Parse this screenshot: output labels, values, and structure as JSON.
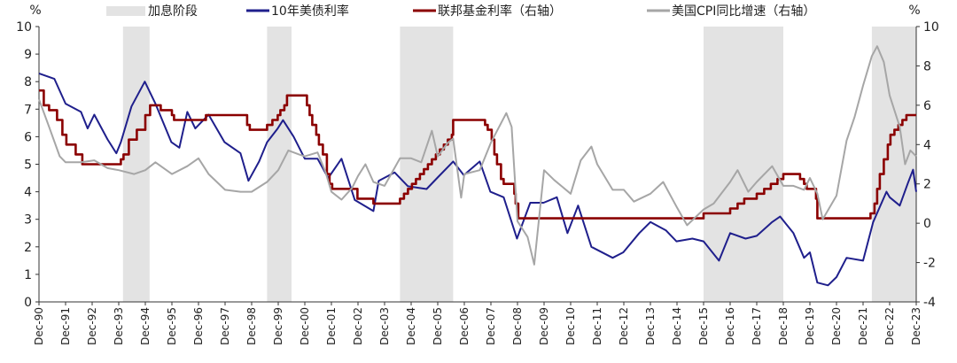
{
  "chart_data": {
    "type": "line",
    "left_axis_unit": "%",
    "right_axis_unit": "%",
    "left_ylim": [
      0,
      10
    ],
    "right_ylim": [
      -4,
      10
    ],
    "left_ticks": [
      "0",
      "1",
      "2",
      "3",
      "4",
      "5",
      "6",
      "7",
      "8",
      "9",
      "10"
    ],
    "right_ticks": [
      "-4",
      "-2",
      "0",
      "2",
      "4",
      "6",
      "8",
      "10"
    ],
    "x_labels": [
      "Dec-90",
      "Dec-91",
      "Dec-92",
      "Dec-93",
      "Dec-94",
      "Dec-95",
      "Dec-96",
      "Dec-97",
      "Dec-98",
      "Dec-99",
      "Dec-00",
      "Dec-01",
      "Dec-02",
      "Dec-03",
      "Dec-04",
      "Dec-05",
      "Dec-06",
      "Dec-07",
      "Dec-08",
      "Dec-09",
      "Dec-10",
      "Dec-11",
      "Dec-12",
      "Dec-13",
      "Dec-14",
      "Dec-15",
      "Dec-16",
      "Dec-17",
      "Dec-18",
      "Dec-19",
      "Dec-20",
      "Dec-21",
      "Dec-22",
      "Dec-23"
    ],
    "x_range": [
      1990.92,
      2023.92
    ],
    "legend": [
      {
        "name": "加息阶段",
        "kind": "band",
        "color": "#e3e3e3"
      },
      {
        "name": "10年美债利率",
        "kind": "line",
        "color": "#1f1f8c"
      },
      {
        "name": "联邦基金利率（右轴）",
        "kind": "line",
        "color": "#8b0000"
      },
      {
        "name": "美国CPI同比增速（右轴）",
        "kind": "line",
        "color": "#a6a6a6"
      }
    ],
    "hike_periods": [
      [
        1994.08,
        1995.08
      ],
      [
        1999.5,
        2000.42
      ],
      [
        2004.5,
        2006.5
      ],
      [
        2015.92,
        2018.92
      ],
      [
        2022.25,
        2023.92
      ]
    ],
    "series": [
      {
        "name": "10年美债利率",
        "axis": "left",
        "color": "#1f1f8c",
        "points": [
          [
            1990.92,
            8.3
          ],
          [
            1991.5,
            8.1
          ],
          [
            1991.92,
            7.2
          ],
          [
            1992.5,
            6.9
          ],
          [
            1992.75,
            6.3
          ],
          [
            1993.0,
            6.8
          ],
          [
            1993.5,
            5.9
          ],
          [
            1993.83,
            5.4
          ],
          [
            1994.0,
            5.8
          ],
          [
            1994.4,
            7.1
          ],
          [
            1994.9,
            8.0
          ],
          [
            1995.3,
            7.2
          ],
          [
            1995.9,
            5.8
          ],
          [
            1996.2,
            5.6
          ],
          [
            1996.5,
            6.9
          ],
          [
            1996.8,
            6.3
          ],
          [
            1997.3,
            6.8
          ],
          [
            1997.9,
            5.8
          ],
          [
            1998.5,
            5.4
          ],
          [
            1998.8,
            4.4
          ],
          [
            1999.2,
            5.1
          ],
          [
            1999.5,
            5.8
          ],
          [
            1999.9,
            6.3
          ],
          [
            2000.1,
            6.6
          ],
          [
            2000.5,
            6.0
          ],
          [
            2000.92,
            5.2
          ],
          [
            2001.4,
            5.2
          ],
          [
            2001.8,
            4.5
          ],
          [
            2002.3,
            5.2
          ],
          [
            2002.8,
            3.7
          ],
          [
            2003.5,
            3.3
          ],
          [
            2003.7,
            4.4
          ],
          [
            2004.3,
            4.7
          ],
          [
            2004.8,
            4.2
          ],
          [
            2005.5,
            4.1
          ],
          [
            2005.9,
            4.5
          ],
          [
            2006.5,
            5.1
          ],
          [
            2006.9,
            4.6
          ],
          [
            2007.5,
            5.1
          ],
          [
            2007.9,
            4.0
          ],
          [
            2008.4,
            3.8
          ],
          [
            2008.9,
            2.3
          ],
          [
            2009.4,
            3.6
          ],
          [
            2009.9,
            3.6
          ],
          [
            2010.4,
            3.8
          ],
          [
            2010.8,
            2.5
          ],
          [
            2011.2,
            3.5
          ],
          [
            2011.7,
            2.0
          ],
          [
            2012.5,
            1.6
          ],
          [
            2012.9,
            1.8
          ],
          [
            2013.5,
            2.5
          ],
          [
            2013.92,
            2.9
          ],
          [
            2014.5,
            2.6
          ],
          [
            2014.9,
            2.2
          ],
          [
            2015.5,
            2.3
          ],
          [
            2015.92,
            2.2
          ],
          [
            2016.5,
            1.5
          ],
          [
            2016.92,
            2.5
          ],
          [
            2017.5,
            2.3
          ],
          [
            2017.92,
            2.4
          ],
          [
            2018.5,
            2.9
          ],
          [
            2018.8,
            3.1
          ],
          [
            2019.3,
            2.5
          ],
          [
            2019.7,
            1.6
          ],
          [
            2019.92,
            1.8
          ],
          [
            2020.2,
            0.7
          ],
          [
            2020.6,
            0.6
          ],
          [
            2020.92,
            0.9
          ],
          [
            2021.3,
            1.6
          ],
          [
            2021.92,
            1.5
          ],
          [
            2022.3,
            2.9
          ],
          [
            2022.8,
            4.0
          ],
          [
            2022.92,
            3.8
          ],
          [
            2023.3,
            3.5
          ],
          [
            2023.6,
            4.3
          ],
          [
            2023.8,
            4.8
          ],
          [
            2023.92,
            4.0
          ]
        ]
      },
      {
        "name": "联邦基金利率（右轴）",
        "axis": "right",
        "color": "#8b0000",
        "step": true,
        "points": [
          [
            1990.92,
            6.75
          ],
          [
            1991.1,
            6.0
          ],
          [
            1991.3,
            5.75
          ],
          [
            1991.6,
            5.25
          ],
          [
            1991.8,
            4.5
          ],
          [
            1991.95,
            4.0
          ],
          [
            1992.3,
            3.5
          ],
          [
            1992.55,
            3.0
          ],
          [
            1994.0,
            3.25
          ],
          [
            1994.1,
            3.5
          ],
          [
            1994.3,
            4.25
          ],
          [
            1994.6,
            4.75
          ],
          [
            1994.92,
            5.5
          ],
          [
            1995.1,
            6.0
          ],
          [
            1995.5,
            5.75
          ],
          [
            1995.92,
            5.5
          ],
          [
            1996.0,
            5.25
          ],
          [
            1997.2,
            5.5
          ],
          [
            1998.75,
            5.0
          ],
          [
            1998.85,
            4.75
          ],
          [
            1999.5,
            5.0
          ],
          [
            1999.7,
            5.25
          ],
          [
            1999.9,
            5.5
          ],
          [
            2000.0,
            5.75
          ],
          [
            2000.15,
            6.0
          ],
          [
            2000.25,
            6.5
          ],
          [
            2001.0,
            6.0
          ],
          [
            2001.1,
            5.5
          ],
          [
            2001.2,
            5.0
          ],
          [
            2001.35,
            4.5
          ],
          [
            2001.45,
            4.0
          ],
          [
            2001.6,
            3.5
          ],
          [
            2001.75,
            2.5
          ],
          [
            2001.85,
            2.0
          ],
          [
            2001.95,
            1.75
          ],
          [
            2002.9,
            1.25
          ],
          [
            2003.5,
            1.0
          ],
          [
            2004.5,
            1.25
          ],
          [
            2004.65,
            1.5
          ],
          [
            2004.8,
            1.75
          ],
          [
            2004.95,
            2.0
          ],
          [
            2005.1,
            2.25
          ],
          [
            2005.25,
            2.5
          ],
          [
            2005.4,
            2.75
          ],
          [
            2005.55,
            3.0
          ],
          [
            2005.7,
            3.25
          ],
          [
            2005.85,
            3.5
          ],
          [
            2006.0,
            3.75
          ],
          [
            2006.15,
            4.0
          ],
          [
            2006.3,
            4.25
          ],
          [
            2006.45,
            4.5
          ],
          [
            2006.5,
            5.25
          ],
          [
            2007.7,
            5.0
          ],
          [
            2007.8,
            4.75
          ],
          [
            2007.95,
            4.25
          ],
          [
            2008.05,
            3.5
          ],
          [
            2008.15,
            3.0
          ],
          [
            2008.3,
            2.25
          ],
          [
            2008.4,
            2.0
          ],
          [
            2008.8,
            1.5
          ],
          [
            2008.85,
            1.0
          ],
          [
            2008.95,
            0.25
          ],
          [
            2015.92,
            0.5
          ],
          [
            2016.92,
            0.75
          ],
          [
            2017.2,
            1.0
          ],
          [
            2017.45,
            1.25
          ],
          [
            2017.92,
            1.5
          ],
          [
            2018.2,
            1.75
          ],
          [
            2018.45,
            2.0
          ],
          [
            2018.7,
            2.25
          ],
          [
            2018.92,
            2.5
          ],
          [
            2019.55,
            2.25
          ],
          [
            2019.7,
            2.0
          ],
          [
            2019.8,
            1.75
          ],
          [
            2020.15,
            1.25
          ],
          [
            2020.2,
            0.25
          ],
          [
            2022.2,
            0.5
          ],
          [
            2022.35,
            1.0
          ],
          [
            2022.45,
            1.75
          ],
          [
            2022.55,
            2.5
          ],
          [
            2022.7,
            3.25
          ],
          [
            2022.85,
            4.0
          ],
          [
            2022.95,
            4.5
          ],
          [
            2023.1,
            4.75
          ],
          [
            2023.25,
            5.0
          ],
          [
            2023.4,
            5.25
          ],
          [
            2023.55,
            5.5
          ],
          [
            2023.92,
            5.5
          ]
        ]
      },
      {
        "name": "美国CPI同比增速（右轴）",
        "axis": "right",
        "color": "#a6a6a6",
        "points": [
          [
            1990.92,
            6.3
          ],
          [
            1991.3,
            4.9
          ],
          [
            1991.7,
            3.4
          ],
          [
            1991.92,
            3.1
          ],
          [
            1992.5,
            3.1
          ],
          [
            1993.0,
            3.2
          ],
          [
            1993.5,
            2.8
          ],
          [
            1993.92,
            2.7
          ],
          [
            1994.5,
            2.5
          ],
          [
            1994.92,
            2.7
          ],
          [
            1995.3,
            3.1
          ],
          [
            1995.92,
            2.5
          ],
          [
            1996.5,
            2.9
          ],
          [
            1996.92,
            3.3
          ],
          [
            1997.3,
            2.5
          ],
          [
            1997.92,
            1.7
          ],
          [
            1998.5,
            1.6
          ],
          [
            1998.92,
            1.6
          ],
          [
            1999.5,
            2.1
          ],
          [
            1999.92,
            2.7
          ],
          [
            2000.3,
            3.7
          ],
          [
            2000.7,
            3.5
          ],
          [
            2000.92,
            3.4
          ],
          [
            2001.4,
            3.6
          ],
          [
            2001.7,
            2.6
          ],
          [
            2001.92,
            1.6
          ],
          [
            2002.3,
            1.2
          ],
          [
            2002.7,
            1.8
          ],
          [
            2002.92,
            2.4
          ],
          [
            2003.2,
            3.0
          ],
          [
            2003.5,
            2.1
          ],
          [
            2003.92,
            1.9
          ],
          [
            2004.5,
            3.3
          ],
          [
            2004.92,
            3.3
          ],
          [
            2005.3,
            3.1
          ],
          [
            2005.7,
            4.7
          ],
          [
            2005.92,
            3.4
          ],
          [
            2006.3,
            4.1
          ],
          [
            2006.5,
            4.3
          ],
          [
            2006.8,
            1.3
          ],
          [
            2006.92,
            2.5
          ],
          [
            2007.5,
            2.7
          ],
          [
            2007.92,
            4.1
          ],
          [
            2008.5,
            5.6
          ],
          [
            2008.7,
            4.9
          ],
          [
            2008.92,
            0.1
          ],
          [
            2009.3,
            -0.7
          ],
          [
            2009.55,
            -2.1
          ],
          [
            2009.92,
            2.7
          ],
          [
            2010.3,
            2.2
          ],
          [
            2010.92,
            1.5
          ],
          [
            2011.3,
            3.2
          ],
          [
            2011.7,
            3.9
          ],
          [
            2011.92,
            3.0
          ],
          [
            2012.5,
            1.7
          ],
          [
            2012.92,
            1.7
          ],
          [
            2013.3,
            1.1
          ],
          [
            2013.92,
            1.5
          ],
          [
            2014.4,
            2.1
          ],
          [
            2014.92,
            0.8
          ],
          [
            2015.3,
            -0.1
          ],
          [
            2015.92,
            0.7
          ],
          [
            2016.3,
            1.0
          ],
          [
            2016.92,
            2.1
          ],
          [
            2017.2,
            2.7
          ],
          [
            2017.6,
            1.6
          ],
          [
            2017.92,
            2.1
          ],
          [
            2018.5,
            2.9
          ],
          [
            2018.92,
            1.9
          ],
          [
            2019.3,
            1.9
          ],
          [
            2019.7,
            1.7
          ],
          [
            2019.92,
            2.3
          ],
          [
            2020.2,
            1.5
          ],
          [
            2020.4,
            0.2
          ],
          [
            2020.92,
            1.4
          ],
          [
            2021.3,
            4.2
          ],
          [
            2021.6,
            5.4
          ],
          [
            2021.92,
            7.0
          ],
          [
            2022.25,
            8.5
          ],
          [
            2022.45,
            9.0
          ],
          [
            2022.7,
            8.2
          ],
          [
            2022.92,
            6.5
          ],
          [
            2023.3,
            4.9
          ],
          [
            2023.5,
            3.0
          ],
          [
            2023.7,
            3.7
          ],
          [
            2023.92,
            3.4
          ]
        ]
      }
    ]
  }
}
